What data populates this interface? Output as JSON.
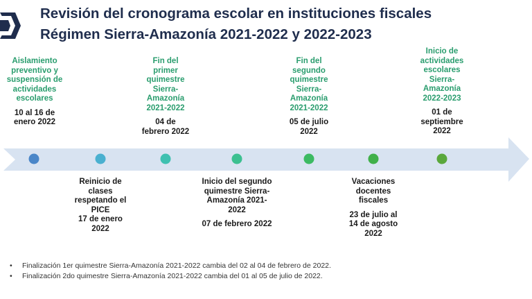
{
  "title": {
    "line1": "Revisión del cronograma escolar en instituciones fiscales",
    "line2": "Régimen Sierra-Amazonía 2021-2022 y 2022-2023"
  },
  "events_top": [
    {
      "label": "Aislamiento preventivo y suspensión de actividades escolares",
      "date": "10 al 16 de enero 2022"
    },
    {
      "label": "Fin del primer quimestre Sierra-Amazonía 2021-2022",
      "date": "04 de febrero 2022"
    },
    {
      "label": "Fin del segundo quimestre Sierra-Amazonía 2021-2022",
      "date": "05 de julio 2022"
    },
    {
      "label": "Inicio de actividades escolares Sierra-Amazonía 2022-2023",
      "date": "01 de septiembre 2022"
    }
  ],
  "events_bottom": [
    {
      "label": "Reinicio de clases respetando el PICE",
      "date": "17 de enero 2022"
    },
    {
      "label": "Inicio del segundo quimestre Sierra-Amazonía 2021-2022",
      "date": "07 de febrero 2022"
    },
    {
      "label": "Vacaciones docentes fiscales",
      "date": "23 de julio al 14 de agosto 2022"
    }
  ],
  "dot_colors": [
    "#4a86c8",
    "#4ab0d0",
    "#3ec0b0",
    "#3cc090",
    "#3cba62",
    "#40b04a",
    "#5aa83c"
  ],
  "arrow_color": "#d8e3f1",
  "corner_mark_color": "#1f2d4d",
  "notes": [
    "Finalización 1er quimestre Sierra-Amazonía 2021-2022 cambia del 02 al 04 de febrero de 2022.",
    "Finalización 2do quimestre Sierra-Amazonía 2021-2022 cambia del 01 al 05 de julio de 2022."
  ]
}
